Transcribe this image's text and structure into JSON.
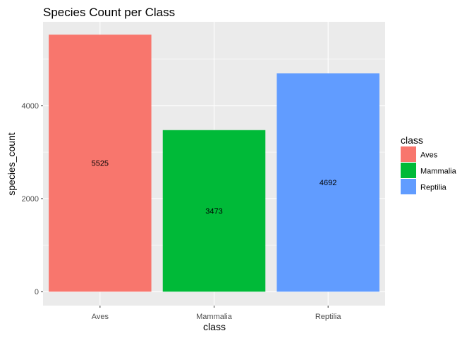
{
  "chart_data": {
    "type": "bar",
    "title": "Species Count per Class",
    "xlabel": "class",
    "ylabel": "species_count",
    "categories": [
      "Aves",
      "Mammalia",
      "Reptilia"
    ],
    "values": [
      5525,
      3473,
      4692
    ],
    "data_labels": [
      "5525",
      "3473",
      "4692"
    ],
    "colors": [
      "#F8766D",
      "#00BA38",
      "#619CFF"
    ],
    "ylim": [
      -300,
      5801
    ],
    "y_ticks": [
      0,
      2000,
      4000
    ],
    "y_tick_labels": [
      "0",
      "2000",
      "4000"
    ],
    "grid": true,
    "panel_background": "#EBEBEB",
    "grid_color": "#FFFFFF",
    "legend": {
      "position": "right",
      "title": "class",
      "entries": [
        "Aves",
        "Mammalia",
        "Reptilia"
      ]
    }
  }
}
